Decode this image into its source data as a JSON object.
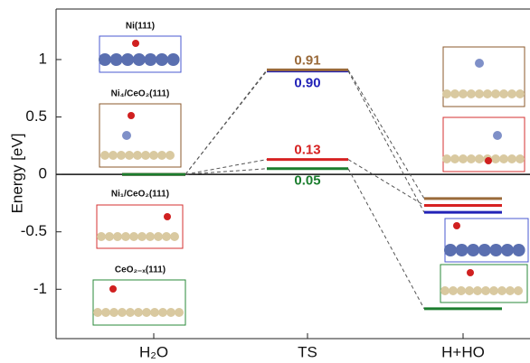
{
  "chart_data": {
    "type": "energy-profile",
    "y_label": "Energy [eV]",
    "categories": [
      "H₂O",
      "TS",
      "H+HO"
    ],
    "ylim": [
      -1.43,
      1.44
    ],
    "yticks": [
      -1,
      -0.5,
      0,
      0.5,
      1
    ],
    "series": [
      {
        "name": "Ni(111)",
        "color": "#2323b8",
        "values": [
          0,
          0.9,
          -0.33
        ],
        "value_labels": [
          null,
          "0.90",
          null
        ]
      },
      {
        "name": "Ni₄/CeO₂(111)",
        "color": "#9a6a3a",
        "values": [
          0,
          0.91,
          -0.21
        ],
        "value_labels": [
          null,
          "0.91",
          null
        ]
      },
      {
        "name": "Ni₁/CeO₂(111)",
        "color": "#d62222",
        "values": [
          0,
          0.13,
          -0.27
        ],
        "value_labels": [
          null,
          "0.13",
          null
        ]
      },
      {
        "name": "CeO₂₋ₓ(111)",
        "color": "#1b7d2e",
        "values": [
          0,
          0.05,
          -1.17
        ],
        "value_labels": [
          null,
          "0.05",
          null
        ]
      }
    ]
  }
}
